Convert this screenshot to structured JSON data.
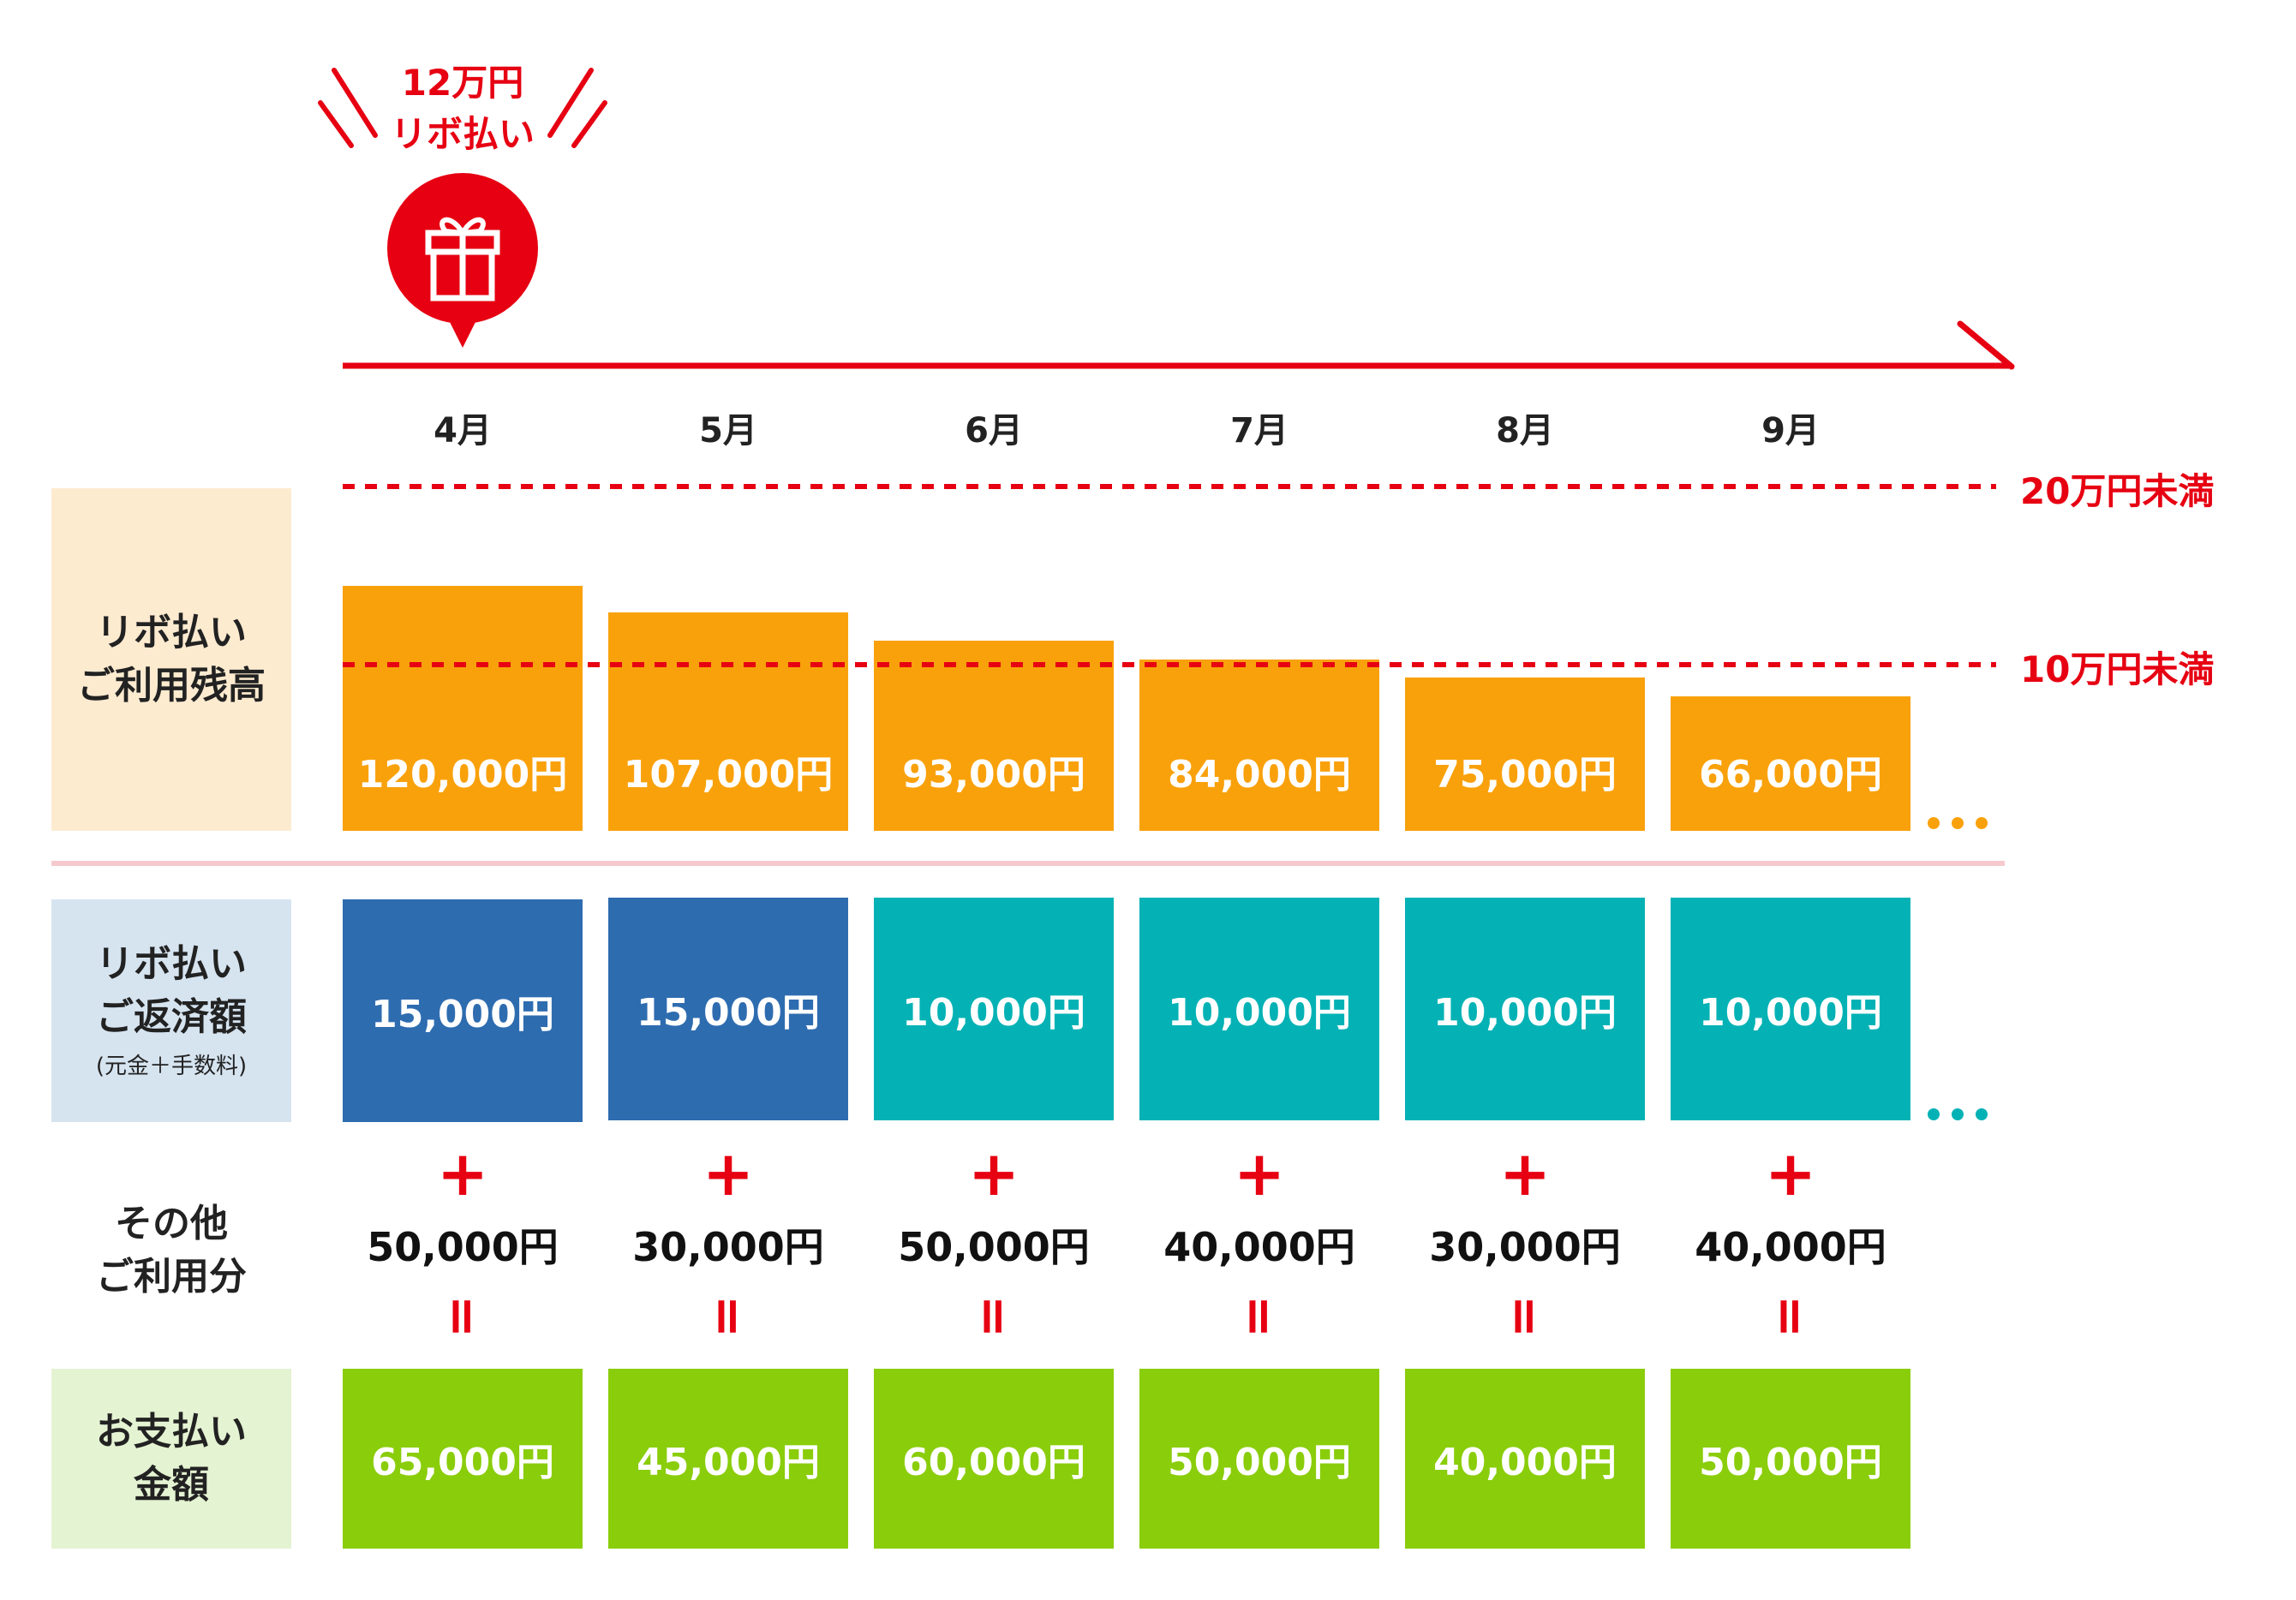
{
  "colors": {
    "red": "#e60012",
    "orange": "#f9a10b",
    "blue": "#2e6cb0",
    "teal": "#04b2b5",
    "green": "#8acd0b",
    "label_balance_bg": "#fdebd0",
    "label_repay_bg": "#d6e4f0",
    "label_payment_bg": "#e4f3d2",
    "divider": "#f6c9cf"
  },
  "callout": {
    "line1": "12万円",
    "line2": "リボ払い",
    "icon": "gift-icon"
  },
  "months": [
    "4月",
    "5月",
    "6月",
    "7月",
    "8月",
    "9月"
  ],
  "limits": {
    "upper": "20万円未満",
    "lower": "10万円未満"
  },
  "row_labels": {
    "balance": [
      "リボ払い",
      "ご利用残高"
    ],
    "repayment": [
      "リボ払い",
      "ご返済額"
    ],
    "repayment_note": "(元金＋手数料)",
    "other": [
      "その他",
      "ご利用分"
    ],
    "payment": [
      "お支払い",
      "金額"
    ]
  },
  "balance": {
    "labels": [
      "120,000円",
      "107,000円",
      "93,000円",
      "84,000円",
      "75,000円",
      "66,000円"
    ],
    "values": [
      120000,
      107000,
      93000,
      84000,
      75000,
      66000
    ]
  },
  "repayment": [
    "15,000円",
    "15,000円",
    "10,000円",
    "10,000円",
    "10,000円",
    "10,000円"
  ],
  "repayment_colors": [
    "blue",
    "blue",
    "teal",
    "teal",
    "teal",
    "teal"
  ],
  "other_usage": [
    "50,000円",
    "30,000円",
    "50,000円",
    "40,000円",
    "30,000円",
    "40,000円"
  ],
  "payment": [
    "65,000円",
    "45,000円",
    "60,000円",
    "50,000円",
    "40,000円",
    "50,000円"
  ],
  "operators": {
    "plus": "+",
    "equals": "="
  },
  "chart_data": {
    "type": "bar",
    "title": "",
    "categories": [
      "4月",
      "5月",
      "6月",
      "7月",
      "8月",
      "9月"
    ],
    "series": [
      {
        "name": "リボ払い ご利用残高",
        "values": [
          120000,
          107000,
          93000,
          84000,
          75000,
          66000
        ]
      },
      {
        "name": "リボ払い ご返済額",
        "values": [
          15000,
          15000,
          10000,
          10000,
          10000,
          10000
        ]
      },
      {
        "name": "その他 ご利用分",
        "values": [
          50000,
          30000,
          50000,
          40000,
          30000,
          40000
        ]
      },
      {
        "name": "お支払い 金額",
        "values": [
          65000,
          45000,
          60000,
          50000,
          40000,
          50000
        ]
      }
    ],
    "reference_lines": [
      {
        "label": "20万円未満",
        "value": 200000
      },
      {
        "label": "10万円未満",
        "value": 100000
      }
    ],
    "xlabel": "",
    "ylabel": ""
  }
}
